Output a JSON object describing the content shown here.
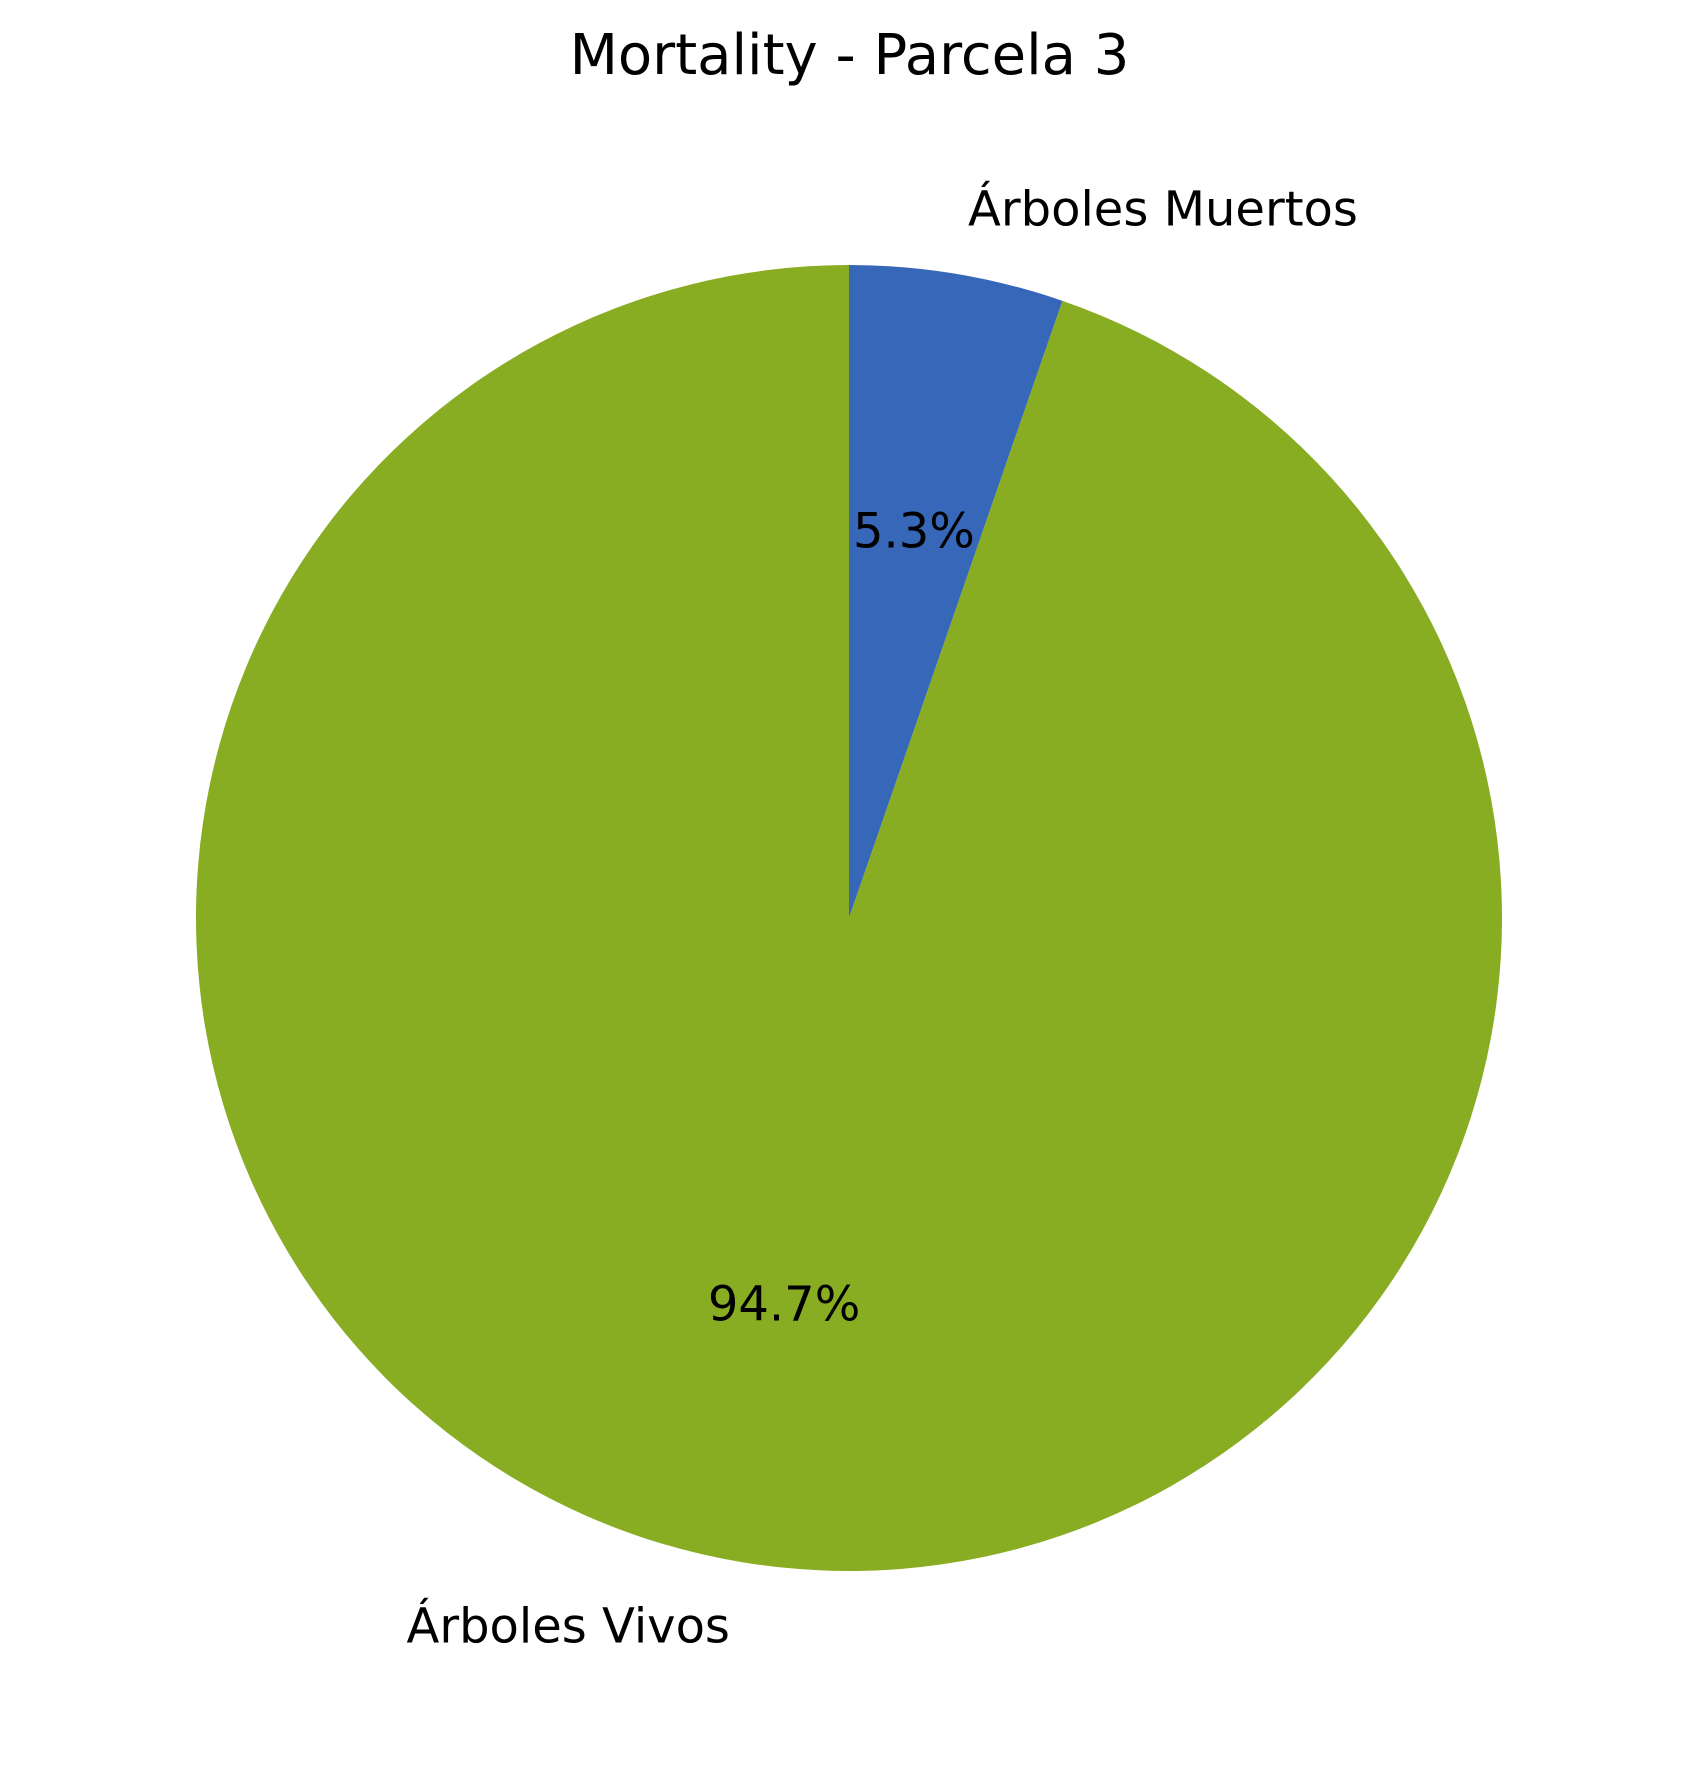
{
  "chart_data": {
    "type": "pie",
    "title": "Mortality - Parcela 3",
    "slices": [
      {
        "label": "Árboles Muertos",
        "value": 5.3,
        "value_label": "5.3%",
        "color": "#3767b8"
      },
      {
        "label": "Árboles Vivos",
        "value": 94.7,
        "value_label": "94.7%",
        "color": "#88ac22"
      }
    ],
    "start_angle": "top (12 o'clock)",
    "direction": "clockwise",
    "legend": "none"
  }
}
